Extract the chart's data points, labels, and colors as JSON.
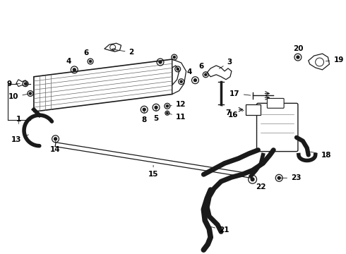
{
  "background_color": "#ffffff",
  "fig_width": 4.9,
  "fig_height": 3.6,
  "dpi": 100,
  "line_color": "#1a1a1a",
  "gray": "#666666"
}
